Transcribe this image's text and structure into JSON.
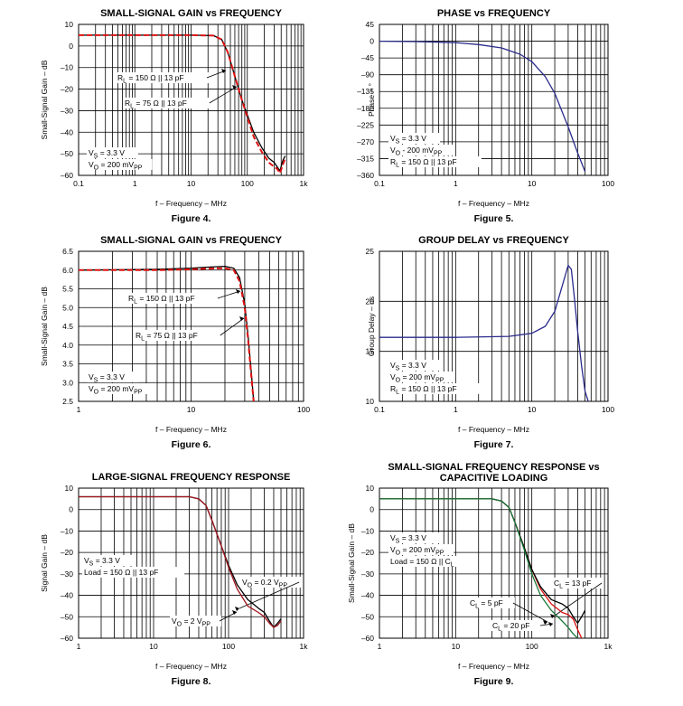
{
  "chart_data": [
    {
      "type": "line",
      "title": "SMALL-SIGNAL GAIN vs FREQUENCY",
      "figure": "Figure 4.",
      "xlabel": "f – Frequency – MHz",
      "ylabel": "Small-Signal Gain – dB",
      "xscale": "log",
      "xlim": [
        0.1,
        1000
      ],
      "ylim": [
        -60,
        10
      ],
      "xticks": [
        0.1,
        1,
        10,
        100,
        1000
      ],
      "xtick_labels": [
        "0.1",
        "1",
        "10",
        "100",
        "1k"
      ],
      "yticks": [
        10,
        0,
        -10,
        -20,
        -30,
        -40,
        -50,
        -60
      ],
      "ytick_labels": [
        "10",
        "0",
        "–10",
        "–20",
        "–30",
        "–40",
        "–50",
        "–60"
      ],
      "series": [
        {
          "name": "RL = 150 Ω || 13 pF",
          "color": "#000000",
          "style": "solid",
          "x": [
            0.1,
            1,
            10,
            25,
            35,
            45,
            60,
            80,
            100,
            130,
            180,
            240,
            300,
            340,
            380,
            430,
            470
          ],
          "y": [
            5,
            5,
            5,
            4.8,
            3,
            -3,
            -14,
            -25,
            -32,
            -40,
            -47,
            -52,
            -54,
            -56,
            -58,
            -53,
            -51
          ]
        },
        {
          "name": "RL = 75 Ω || 13 pF",
          "color": "#dd1111",
          "style": "dashed",
          "x": [
            0.1,
            1,
            10,
            25,
            35,
            45,
            60,
            80,
            100,
            130,
            180,
            240,
            300,
            340,
            380,
            430,
            470
          ],
          "y": [
            5,
            5,
            5,
            4.8,
            3,
            -3,
            -14,
            -25,
            -33,
            -42,
            -49,
            -54,
            -56,
            -57,
            -59,
            -55,
            -52
          ]
        }
      ],
      "annotations": [
        {
          "parts": [
            [
              "R",
              ""
            ],
            [
              "L",
              "sub"
            ],
            [
              " = 150 Ω || 13 pF",
              ""
            ]
          ]
        },
        {
          "parts": [
            [
              "R",
              ""
            ],
            [
              "L",
              "sub"
            ],
            [
              " = 75 Ω || 13 pF",
              ""
            ]
          ]
        },
        {
          "parts": [
            [
              "V",
              ""
            ],
            [
              "S",
              "sub"
            ],
            [
              " = 3.3 V",
              ""
            ]
          ]
        },
        {
          "parts": [
            [
              "V",
              ""
            ],
            [
              "O",
              "sub"
            ],
            [
              " = 200 mV",
              ""
            ],
            [
              "PP",
              "sub"
            ]
          ]
        }
      ]
    },
    {
      "type": "line",
      "title": "PHASE vs FREQUENCY",
      "figure": "Figure 5.",
      "xlabel": "f – Frequency – MHz",
      "ylabel": "Phase – °",
      "xscale": "log",
      "xlim": [
        0.1,
        100
      ],
      "ylim": [
        -360,
        45
      ],
      "xticks": [
        0.1,
        1,
        10,
        100
      ],
      "xtick_labels": [
        "0.1",
        "1",
        "10",
        "100"
      ],
      "yticks": [
        45,
        0,
        -45,
        -90,
        -135,
        -180,
        -225,
        -270,
        -315,
        -360
      ],
      "ytick_labels": [
        "45",
        "0",
        "–45",
        "–90",
        "–135",
        "–180",
        "–225",
        "–270",
        "–315",
        "–360"
      ],
      "series": [
        {
          "name": "",
          "color": "#2b2b8c",
          "style": "solid",
          "x": [
            0.1,
            0.3,
            1,
            2,
            4,
            7,
            10,
            15,
            20,
            30,
            40,
            50
          ],
          "y": [
            0,
            -1,
            -4,
            -9,
            -18,
            -35,
            -55,
            -95,
            -140,
            -230,
            -300,
            -350
          ]
        }
      ],
      "annotations": [
        {
          "parts": [
            [
              "V",
              ""
            ],
            [
              "S",
              "sub"
            ],
            [
              " = 3.3 V",
              ""
            ]
          ]
        },
        {
          "parts": [
            [
              "V",
              ""
            ],
            [
              "O",
              "sub"
            ],
            [
              " - 200 mV",
              ""
            ],
            [
              "PP",
              "sub"
            ]
          ]
        },
        {
          "parts": [
            [
              "R",
              ""
            ],
            [
              "L",
              "sub"
            ],
            [
              " = 150 Ω || 13 pF",
              ""
            ]
          ]
        }
      ]
    },
    {
      "type": "line",
      "title": "SMALL-SIGNAL GAIN vs FREQUENCY",
      "figure": "Figure 6.",
      "xlabel": "f – Frequency – MHz",
      "ylabel": "Small-Signal Gain – dB",
      "xscale": "log",
      "xlim": [
        1,
        100
      ],
      "ylim": [
        2.5,
        6.5
      ],
      "xticks": [
        1,
        10,
        100
      ],
      "xtick_labels": [
        "1",
        "10",
        "100"
      ],
      "yticks": [
        6.5,
        6.0,
        5.5,
        5.0,
        4.5,
        4.0,
        3.5,
        3.0,
        2.5
      ],
      "ytick_labels": [
        "6.5",
        "6.0",
        "5.5",
        "5.0",
        "4.5",
        "4.0",
        "3.5",
        "3.0",
        "2.5"
      ],
      "series": [
        {
          "name": "RL = 150 Ω || 13 pF",
          "color": "#000000",
          "style": "solid",
          "x": [
            1,
            5,
            10,
            15,
            20,
            24,
            27,
            30,
            32,
            34,
            36
          ],
          "y": [
            6.0,
            6.02,
            6.05,
            6.08,
            6.1,
            6.05,
            5.8,
            5.1,
            4.3,
            3.4,
            2.5
          ]
        },
        {
          "name": "RL = 75 Ω || 13 pF",
          "color": "#dd1111",
          "style": "dashed",
          "x": [
            1,
            5,
            10,
            15,
            20,
            24,
            27,
            30,
            32,
            34,
            36
          ],
          "y": [
            6.0,
            6.0,
            6.02,
            6.04,
            6.05,
            6.0,
            5.7,
            5.0,
            4.2,
            3.3,
            2.5
          ]
        }
      ],
      "annotations": [
        {
          "parts": [
            [
              "R",
              ""
            ],
            [
              "L",
              "sub"
            ],
            [
              " = 150 Ω || 13 pF",
              ""
            ]
          ]
        },
        {
          "parts": [
            [
              "R",
              ""
            ],
            [
              "L",
              "sub"
            ],
            [
              " = 75 Ω || 13 pF",
              ""
            ]
          ]
        },
        {
          "parts": [
            [
              "V",
              ""
            ],
            [
              "S",
              "sub"
            ],
            [
              " = 3.3 V",
              ""
            ]
          ]
        },
        {
          "parts": [
            [
              "V",
              ""
            ],
            [
              "O",
              "sub"
            ],
            [
              " = 200 mV",
              ""
            ],
            [
              "PP",
              "sub"
            ]
          ]
        }
      ]
    },
    {
      "type": "line",
      "title": "GROUP DELAY vs FREQUENCY",
      "figure": "Figure 7.",
      "xlabel": "f – Frequency – MHz",
      "ylabel": "Group Delay – ns",
      "xscale": "log",
      "xlim": [
        0.1,
        100
      ],
      "ylim": [
        10,
        25
      ],
      "xticks": [
        0.1,
        1,
        10,
        100
      ],
      "xtick_labels": [
        "0.1",
        "1",
        "10",
        "100"
      ],
      "yticks": [
        25,
        20,
        15,
        10
      ],
      "ytick_labels": [
        "25",
        "20",
        "15",
        "10"
      ],
      "series": [
        {
          "name": "",
          "color": "#2b2b8c",
          "style": "solid",
          "x": [
            0.1,
            1,
            5,
            10,
            15,
            20,
            25,
            30,
            33,
            36,
            40,
            45,
            50,
            55
          ],
          "y": [
            16.4,
            16.4,
            16.5,
            16.8,
            17.5,
            19,
            21.5,
            23.6,
            23.2,
            20.5,
            17,
            13.5,
            11,
            10
          ]
        }
      ],
      "annotations": [
        {
          "parts": [
            [
              "V",
              ""
            ],
            [
              "S",
              "sub"
            ],
            [
              " = 3.3 V",
              ""
            ]
          ]
        },
        {
          "parts": [
            [
              "V",
              ""
            ],
            [
              "O",
              "sub"
            ],
            [
              " = 200 mV",
              ""
            ],
            [
              "PP",
              "sub"
            ]
          ]
        },
        {
          "parts": [
            [
              "R",
              ""
            ],
            [
              "L",
              "sub"
            ],
            [
              " = 150 Ω || 13 pF",
              ""
            ]
          ]
        }
      ]
    },
    {
      "type": "line",
      "title": "LARGE-SIGNAL FREQUENCY RESPONSE",
      "figure": "Figure 8.",
      "xlabel": "f – Frequency – MHz",
      "ylabel": "Signal Gain – dB",
      "xscale": "log",
      "xlim": [
        1,
        1000
      ],
      "ylim": [
        -60,
        10
      ],
      "xticks": [
        1,
        10,
        100,
        1000
      ],
      "xtick_labels": [
        "1",
        "10",
        "100",
        "1k"
      ],
      "yticks": [
        10,
        0,
        -10,
        -20,
        -30,
        -40,
        -50,
        -60
      ],
      "ytick_labels": [
        "10",
        "0",
        "–10",
        "–20",
        "–30",
        "–40",
        "–50",
        "–60"
      ],
      "series": [
        {
          "name": "VO = 0.2 VPP",
          "color": "#000000",
          "style": "solid",
          "x": [
            1,
            10,
            30,
            40,
            50,
            60,
            80,
            100,
            130,
            180,
            250,
            300,
            350,
            400,
            450,
            500
          ],
          "y": [
            6,
            6,
            6,
            5,
            2,
            -5,
            -17,
            -26,
            -35,
            -42,
            -46,
            -48,
            -52,
            -55,
            -53,
            -51
          ]
        },
        {
          "name": "VO = 2 VPP",
          "color": "#a0141e",
          "style": "solid",
          "x": [
            1,
            10,
            30,
            40,
            50,
            60,
            80,
            100,
            130,
            180,
            250,
            300,
            350,
            400,
            450,
            500
          ],
          "y": [
            6,
            6,
            6,
            5,
            2,
            -5,
            -17,
            -27,
            -37,
            -45,
            -48,
            -50,
            -53,
            -55,
            -54,
            -52
          ]
        }
      ],
      "annotations": [
        {
          "parts": [
            [
              "V",
              ""
            ],
            [
              "S",
              "sub"
            ],
            [
              " = 3.3 V",
              ""
            ]
          ]
        },
        {
          "parts": [
            [
              "Load = 150 Ω || 13 pF",
              ""
            ]
          ]
        },
        {
          "parts": [
            [
              "V",
              ""
            ],
            [
              "O",
              "sub"
            ],
            [
              " = 0.2 V",
              ""
            ],
            [
              "PP",
              "sub"
            ]
          ]
        },
        {
          "parts": [
            [
              "V",
              ""
            ],
            [
              "O",
              "sub"
            ],
            [
              " = 2 V",
              ""
            ],
            [
              "PP",
              "sub"
            ]
          ]
        }
      ]
    },
    {
      "type": "line",
      "title": "SMALL-SIGNAL FREQUENCY RESPONSE vs",
      "title2": "CAPACITIVE LOADING",
      "figure": "Figure 9.",
      "xlabel": "f – Frequency – MHz",
      "ylabel": "Small-Signal Gain – dB",
      "xscale": "log",
      "xlim": [
        1,
        1000
      ],
      "ylim": [
        -60,
        10
      ],
      "xticks": [
        1,
        10,
        100,
        1000
      ],
      "xtick_labels": [
        "1",
        "10",
        "100",
        "1k"
      ],
      "yticks": [
        10,
        0,
        -10,
        -20,
        -30,
        -40,
        -50,
        -60
      ],
      "ytick_labels": [
        "10",
        "0",
        "–10",
        "–20",
        "–30",
        "–40",
        "–50",
        "–60"
      ],
      "series": [
        {
          "name": "CL = 5 pF",
          "color": "#dd1111",
          "style": "solid",
          "x": [
            1,
            10,
            30,
            40,
            50,
            60,
            80,
            100,
            130,
            180,
            250,
            300,
            350,
            400,
            450
          ],
          "y": [
            5,
            5,
            5,
            4,
            1,
            -6,
            -18,
            -28,
            -37,
            -44,
            -48,
            -49,
            -51,
            -56,
            -60
          ]
        },
        {
          "name": "CL = 13 pF",
          "color": "#000000",
          "style": "solid",
          "x": [
            1,
            10,
            30,
            40,
            50,
            60,
            80,
            100,
            130,
            180,
            250,
            300,
            350,
            400,
            450,
            500
          ],
          "y": [
            5,
            5,
            5,
            4,
            1,
            -6,
            -18,
            -28,
            -36,
            -42,
            -44,
            -46,
            -50,
            -53,
            -50,
            -47
          ]
        },
        {
          "name": "CL = 20 pF",
          "color": "#1a7a3a",
          "style": "solid",
          "x": [
            1,
            10,
            30,
            40,
            50,
            60,
            80,
            100,
            130,
            180,
            250,
            300,
            350,
            400
          ],
          "y": [
            5,
            5,
            5,
            4,
            1,
            -6,
            -19,
            -30,
            -40,
            -47,
            -52,
            -55,
            -58,
            -60
          ]
        }
      ],
      "annotations": [
        {
          "parts": [
            [
              "V",
              ""
            ],
            [
              "S",
              "sub"
            ],
            [
              " = 3.3 V",
              ""
            ]
          ]
        },
        {
          "parts": [
            [
              "V",
              ""
            ],
            [
              "O",
              "sub"
            ],
            [
              " = 200 mV",
              ""
            ],
            [
              "PP",
              "sub"
            ]
          ]
        },
        {
          "parts": [
            [
              "Load = 150 Ω || C",
              ""
            ],
            [
              "L",
              "sub"
            ]
          ]
        },
        {
          "parts": [
            [
              "C",
              ""
            ],
            [
              "L",
              "sub"
            ],
            [
              " = 13 pF",
              ""
            ]
          ]
        },
        {
          "parts": [
            [
              "C",
              ""
            ],
            [
              "L",
              "sub"
            ],
            [
              " = 5 pF",
              ""
            ]
          ]
        },
        {
          "parts": [
            [
              "C",
              ""
            ],
            [
              "L",
              "sub"
            ],
            [
              " = 20 pF",
              ""
            ]
          ]
        }
      ]
    }
  ]
}
